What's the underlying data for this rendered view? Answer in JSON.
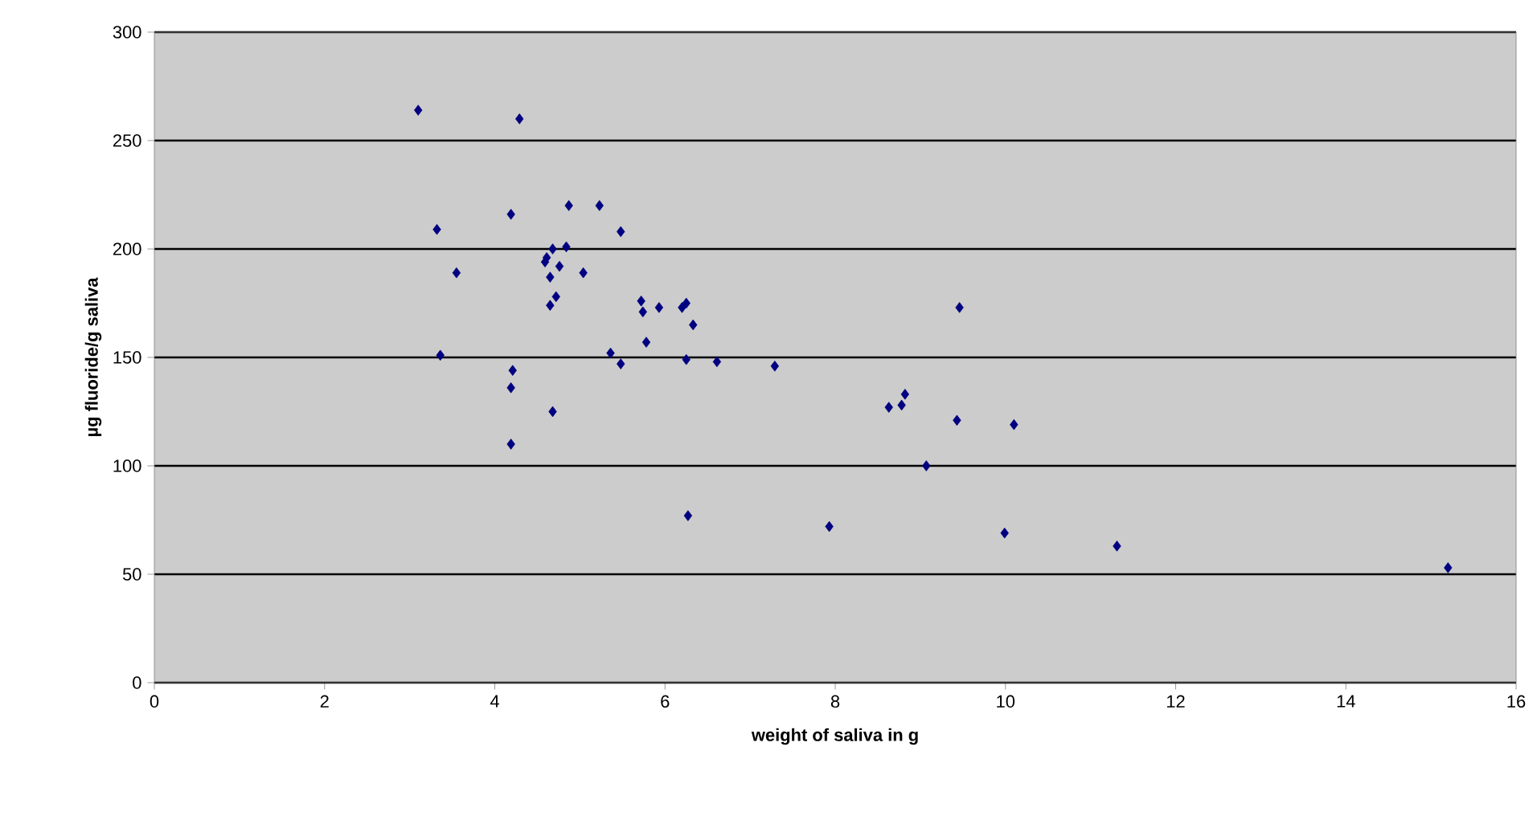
{
  "chart_data": {
    "type": "scatter",
    "xlabel": "weight of saliva in g",
    "ylabel": "µg fluoride/g saliva",
    "xlim": [
      0,
      16
    ],
    "ylim": [
      0,
      300
    ],
    "xticks": [
      0,
      2,
      4,
      6,
      8,
      10,
      12,
      14,
      16
    ],
    "yticks": [
      0,
      50,
      100,
      150,
      200,
      250,
      300
    ],
    "grid": "y",
    "marker": "diamond",
    "series": [
      {
        "color": "#000080",
        "x": [
          3.1,
          4.29,
          3.32,
          4.19,
          4.87,
          5.23,
          5.48,
          3.55,
          3.36,
          4.21,
          4.19,
          4.68,
          4.19,
          4.61,
          4.68,
          4.84,
          4.76,
          4.59,
          4.65,
          4.72,
          4.65,
          5.04,
          5.36,
          5.48,
          5.72,
          5.74,
          5.93,
          6.2,
          6.25,
          6.33,
          5.78,
          6.25,
          6.61,
          7.29,
          6.27,
          9.46,
          8.63,
          8.78,
          8.82,
          9.43,
          10.1,
          9.07,
          7.93,
          9.99,
          11.31,
          15.2
        ],
        "values": [
          264,
          260,
          209,
          216,
          220,
          220,
          208,
          189,
          151,
          144,
          136,
          125,
          110,
          196,
          200,
          201,
          192,
          194,
          187,
          178,
          174,
          189,
          152,
          147,
          176,
          171,
          173,
          173,
          175,
          165,
          157,
          149,
          148,
          146,
          77,
          173,
          127,
          128,
          133,
          121,
          119,
          100,
          72,
          69,
          63,
          53
        ]
      }
    ]
  }
}
